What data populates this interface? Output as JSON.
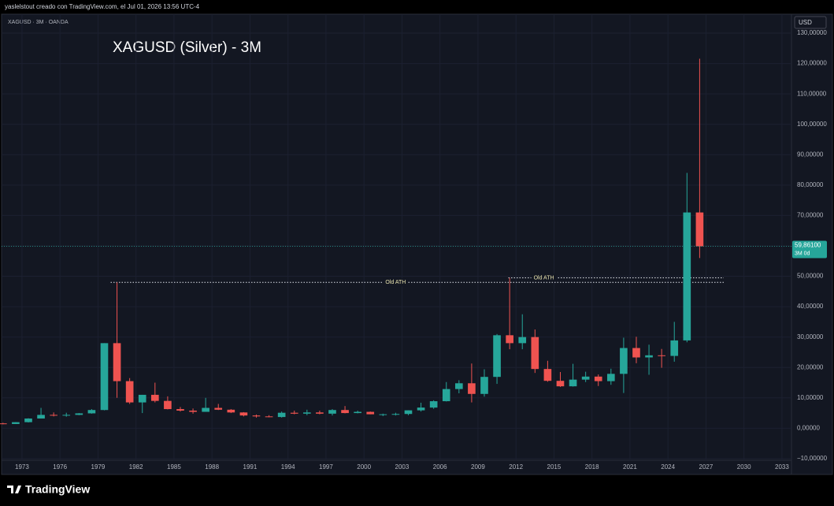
{
  "header": {
    "credit": "yaslelstout creado con TradingView.com, el Jul 01, 2026 13:56 UTC-4"
  },
  "footer": {
    "brand": "TradingView"
  },
  "chart_data": {
    "type": "candlestick",
    "title": "XAGUSD (Silver) - 3M",
    "symbol_line": "XAGUSD · 3M · OANDA",
    "currency": "USD",
    "x": [
      1971,
      1972,
      1973,
      1974,
      1975,
      1976,
      1977,
      1978,
      1979,
      1980,
      1981,
      1982,
      1983,
      1984,
      1985,
      1986,
      1987,
      1988,
      1989,
      1990,
      1991,
      1992,
      1993,
      1994,
      1995,
      1996,
      1997,
      1998,
      1999,
      2000,
      2001,
      2002,
      2003,
      2004,
      2005,
      2006,
      2007,
      2008,
      2009,
      2010,
      2011,
      2012,
      2013,
      2014,
      2015,
      2016,
      2017,
      2018,
      2019,
      2020,
      2021,
      2022,
      2023,
      2024,
      2025,
      2026
    ],
    "open": [
      1.6,
      1.4,
      2.0,
      3.2,
      4.4,
      4.2,
      4.4,
      4.9,
      6.0,
      28,
      15.5,
      8.5,
      11,
      9,
      6.3,
      5.8,
      5.4,
      6.7,
      6.1,
      5.2,
      4.2,
      3.9,
      3.7,
      5.1,
      4.8,
      5.2,
      4.8,
      6.0,
      5.0,
      5.4,
      4.6,
      4.6,
      4.7,
      5.9,
      6.8,
      8.9,
      12.9,
      14.8,
      11.3,
      16.9,
      30.6,
      28,
      30,
      19.5,
      15.6,
      13.8,
      16,
      17,
      15.5,
      17.9,
      26.4,
      23.3,
      24,
      23.8,
      28.9,
      71
    ],
    "high": [
      1.8,
      2.0,
      3.3,
      6.7,
      5.2,
      5.1,
      5.0,
      6.3,
      28,
      48,
      16.5,
      11,
      15,
      10.5,
      7,
      6.5,
      10,
      8,
      6.3,
      5.3,
      4.5,
      4.3,
      5.5,
      5.8,
      6.1,
      5.8,
      6.3,
      7.3,
      5.8,
      5.5,
      4.8,
      5.1,
      5.9,
      8.4,
      9.2,
      15.2,
      15.8,
      21.3,
      19.4,
      31,
      49.5,
      37.5,
      32.5,
      22.2,
      18.5,
      21.2,
      18.6,
      17.7,
      19.6,
      29.8,
      30.1,
      27.5,
      26.1,
      35,
      84,
      121.6
    ],
    "low": [
      1.3,
      1.4,
      1.9,
      3.2,
      3.9,
      3.8,
      4.3,
      4.8,
      5.9,
      10,
      8,
      5,
      8.5,
      6.2,
      5.5,
      4.8,
      5.4,
      6,
      5,
      3.9,
      3.5,
      3.6,
      3.5,
      4.6,
      4.3,
      4.6,
      4.2,
      4.9,
      4.9,
      4.6,
      4.0,
      4.2,
      4.3,
      5.5,
      6.4,
      8.8,
      11.5,
      8.5,
      10.4,
      14.6,
      26,
      26,
      18.2,
      15.3,
      13.6,
      13.7,
      15.2,
      13.9,
      14.3,
      11.6,
      21.4,
      17.6,
      19.9,
      21.9,
      28.3,
      56
    ],
    "close": [
      1.4,
      2.0,
      3.2,
      4.4,
      4.2,
      4.4,
      4.9,
      6.0,
      28,
      15.5,
      8.5,
      11,
      9,
      6.3,
      5.8,
      5.4,
      6.7,
      6.1,
      5.2,
      4.2,
      3.9,
      3.7,
      5.1,
      4.8,
      5.2,
      4.8,
      6.0,
      5.0,
      5.4,
      4.6,
      4.6,
      4.7,
      5.9,
      6.8,
      8.9,
      12.9,
      14.8,
      11.3,
      16.9,
      30.6,
      28,
      30,
      19.5,
      15.6,
      13.8,
      16,
      17,
      15.5,
      17.9,
      26.4,
      23.3,
      24,
      23.8,
      28.9,
      71,
      59.861
    ],
    "up_color": "#26a69a",
    "down_color": "#ef5350",
    "xlim": [
      1971.76,
      2033.75
    ],
    "ylim": [
      -10.8,
      135.2
    ],
    "xticks": [
      1973,
      1976,
      1979,
      1982,
      1985,
      1988,
      1991,
      1994,
      1997,
      2000,
      2003,
      2006,
      2009,
      2012,
      2015,
      2018,
      2021,
      2024,
      2027,
      2030,
      2033
    ],
    "yticks": [
      {
        "value": 130,
        "label": "130,00000"
      },
      {
        "value": 120,
        "label": "120,00000"
      },
      {
        "value": 110,
        "label": "110,00000"
      },
      {
        "value": 100,
        "label": "100,00000"
      },
      {
        "value": 90,
        "label": "90,00000"
      },
      {
        "value": 80,
        "label": "80,00000"
      },
      {
        "value": 70,
        "label": "70,00000"
      },
      {
        "value": 60,
        "label": "60,00000"
      },
      {
        "value": 50,
        "label": "50,00000"
      },
      {
        "value": 40,
        "label": "40,00000"
      },
      {
        "value": 30,
        "label": "30,00000"
      },
      {
        "value": 20,
        "label": "20,00000"
      },
      {
        "value": 10,
        "label": "10,00000"
      },
      {
        "value": 0,
        "label": "0,00000"
      },
      {
        "value": -10,
        "label": "−10,00000"
      }
    ],
    "last_price": {
      "value": 59.861,
      "label": "59,86100",
      "countdown": "3M 0d"
    },
    "annotations": [
      {
        "label": "Old ATH",
        "value": 48,
        "x_start": 1980,
        "x_end": 2028.4,
        "label_x": 2002.5
      },
      {
        "label": "Old ATH",
        "value": 49.5,
        "x_start": 2011.4,
        "x_end": 2028.4,
        "label_x": 2014.2
      }
    ]
  }
}
